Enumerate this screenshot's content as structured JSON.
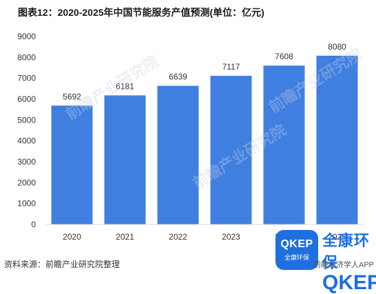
{
  "title": "图表12：2020-2025年中国节能服务产值预测(单位：亿元)",
  "source": "资料来源：前瞻产业研究院整理",
  "watermark": "前瞻产业研究院",
  "logo": {
    "box_line1": "QKEP",
    "box_line2": "全康环保",
    "right_line1": "全康环保",
    "right_line2": "QKEP",
    "app_text": "前瞻经济学人APP"
  },
  "colors": {
    "bar": "#3f7fe0",
    "axis": "#d9d9d9",
    "text": "#333333"
  },
  "chart_data": {
    "type": "bar",
    "categories": [
      "2020",
      "2021",
      "2022",
      "2023",
      "2024",
      "2025"
    ],
    "values": [
      5692,
      6181,
      6639,
      7117,
      7608,
      8080
    ],
    "title": "图表12：2020-2025年中国节能服务产值预测(单位：亿元)",
    "xlabel": "",
    "ylabel": "",
    "ylim": [
      0,
      9000
    ],
    "yticks": [
      0,
      1000,
      2000,
      3000,
      4000,
      5000,
      6000,
      7000,
      8000,
      9000
    ],
    "grid": false,
    "legend": "none"
  }
}
